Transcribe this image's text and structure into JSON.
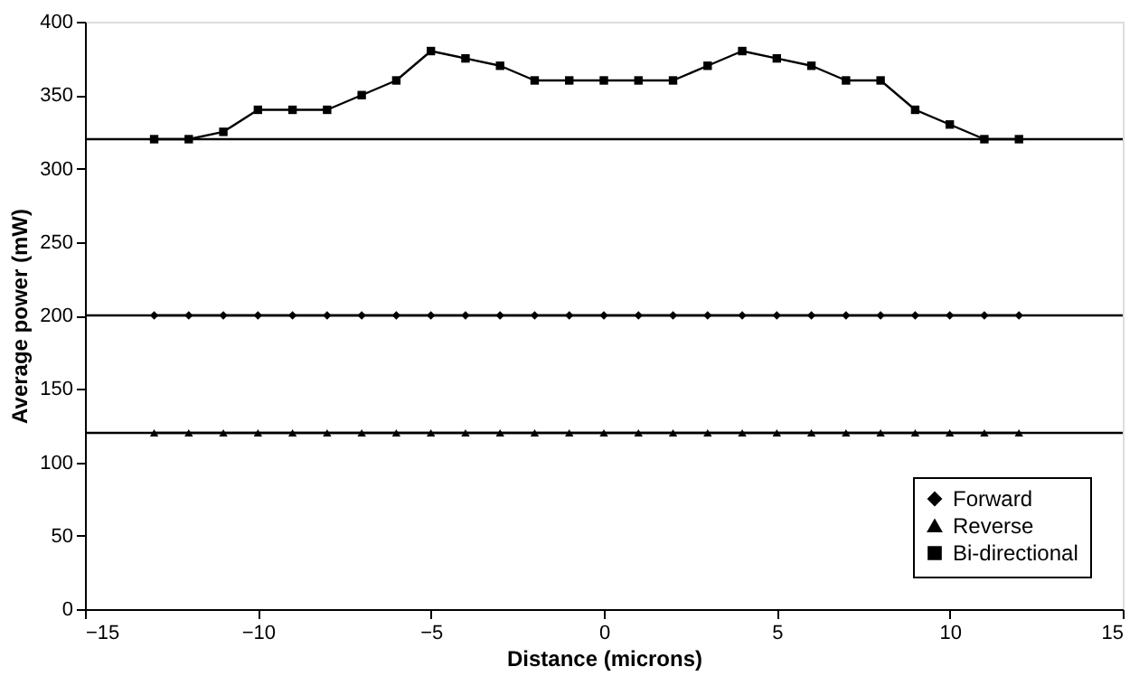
{
  "chart_data": {
    "type": "line",
    "xlabel": "Distance (microns)",
    "ylabel": "Average power (mW)",
    "x": [
      -13,
      -12,
      -11,
      -10,
      -9,
      -8,
      -7,
      -6,
      -5,
      -4,
      -3,
      -2,
      -1,
      0,
      1,
      2,
      3,
      4,
      5,
      6,
      7,
      8,
      9,
      10,
      11,
      12
    ],
    "series": [
      {
        "name": "Forward",
        "color": "#000000",
        "marker": "diamond",
        "values": [
          200,
          200,
          200,
          200,
          200,
          200,
          200,
          200,
          200,
          200,
          200,
          200,
          200,
          200,
          200,
          200,
          200,
          200,
          200,
          200,
          200,
          200,
          200,
          200,
          200,
          200
        ]
      },
      {
        "name": "Reverse",
        "color": "#000000",
        "marker": "triangle",
        "values": [
          120,
          120,
          120,
          120,
          120,
          120,
          120,
          120,
          120,
          120,
          120,
          120,
          120,
          120,
          120,
          120,
          120,
          120,
          120,
          120,
          120,
          120,
          120,
          120,
          120,
          120
        ]
      },
      {
        "name": "Bi-directional",
        "color": "#000000",
        "marker": "square",
        "values": [
          320,
          320,
          325,
          340,
          340,
          340,
          350,
          360,
          380,
          375,
          370,
          360,
          360,
          360,
          360,
          360,
          370,
          380,
          375,
          370,
          360,
          360,
          340,
          330,
          320,
          320
        ]
      }
    ],
    "ref_lines": [
      {
        "axis": "y",
        "value": 320,
        "color": "#000000"
      },
      {
        "axis": "y",
        "value": 200,
        "color": "#000000"
      },
      {
        "axis": "y",
        "value": 120,
        "color": "#000000"
      }
    ],
    "xlim": [
      -15,
      15
    ],
    "xticks": [
      -15,
      -10,
      -5,
      0,
      5,
      10,
      15
    ],
    "ylim": [
      0,
      400
    ],
    "yticks": [
      0,
      50,
      100,
      150,
      200,
      250,
      300,
      350,
      400
    ],
    "grid": false,
    "legend": "bottom right",
    "line_style": "solid"
  }
}
